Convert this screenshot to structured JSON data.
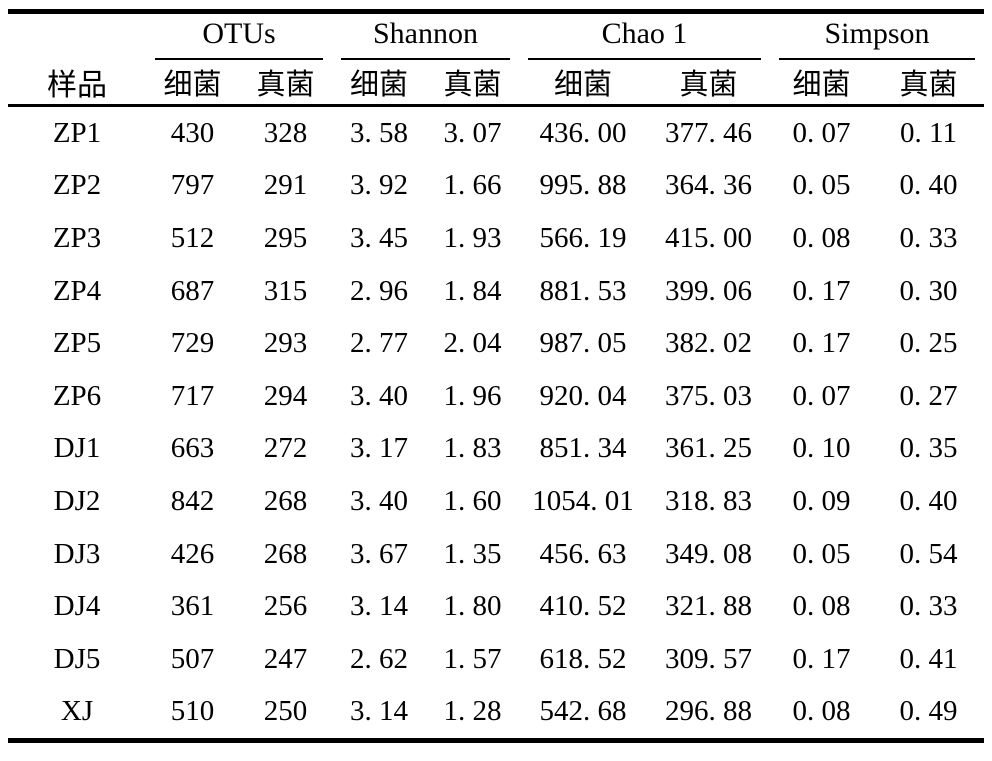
{
  "table": {
    "sample_header": "样品",
    "col_groups": [
      {
        "label": "OTUs"
      },
      {
        "label": "Shannon"
      },
      {
        "label": "Chao 1"
      },
      {
        "label": "Simpson"
      }
    ],
    "sub_headers": [
      "细菌",
      "真菌"
    ],
    "rows": [
      {
        "sample": "ZP1",
        "values": [
          "430",
          "328",
          "3. 58",
          "3. 07",
          "436. 00",
          "377. 46",
          "0. 07",
          "0. 11"
        ]
      },
      {
        "sample": "ZP2",
        "values": [
          "797",
          "291",
          "3. 92",
          "1. 66",
          "995. 88",
          "364. 36",
          "0. 05",
          "0. 40"
        ]
      },
      {
        "sample": "ZP3",
        "values": [
          "512",
          "295",
          "3. 45",
          "1. 93",
          "566. 19",
          "415. 00",
          "0. 08",
          "0. 33"
        ]
      },
      {
        "sample": "ZP4",
        "values": [
          "687",
          "315",
          "2. 96",
          "1. 84",
          "881. 53",
          "399. 06",
          "0. 17",
          "0. 30"
        ]
      },
      {
        "sample": "ZP5",
        "values": [
          "729",
          "293",
          "2. 77",
          "2. 04",
          "987. 05",
          "382. 02",
          "0. 17",
          "0. 25"
        ]
      },
      {
        "sample": "ZP6",
        "values": [
          "717",
          "294",
          "3. 40",
          "1. 96",
          "920. 04",
          "375. 03",
          "0. 07",
          "0. 27"
        ]
      },
      {
        "sample": "DJ1",
        "values": [
          "663",
          "272",
          "3. 17",
          "1. 83",
          "851. 34",
          "361. 25",
          "0. 10",
          "0. 35"
        ]
      },
      {
        "sample": "DJ2",
        "values": [
          "842",
          "268",
          "3. 40",
          "1. 60",
          "1054. 01",
          "318. 83",
          "0. 09",
          "0. 40"
        ]
      },
      {
        "sample": "DJ3",
        "values": [
          "426",
          "268",
          "3. 67",
          "1. 35",
          "456. 63",
          "349. 08",
          "0. 05",
          "0. 54"
        ]
      },
      {
        "sample": "DJ4",
        "values": [
          "361",
          "256",
          "3. 14",
          "1. 80",
          "410. 52",
          "321. 88",
          "0. 08",
          "0. 33"
        ]
      },
      {
        "sample": "DJ5",
        "values": [
          "507",
          "247",
          "2. 62",
          "1. 57",
          "618. 52",
          "309. 57",
          "0. 17",
          "0. 41"
        ]
      },
      {
        "sample": "XJ",
        "values": [
          "510",
          "250",
          "3. 14",
          "1. 28",
          "542. 68",
          "296. 88",
          "0. 08",
          "0. 49"
        ]
      }
    ],
    "colors": {
      "text": "#000000",
      "background": "#ffffff",
      "rule": "#000000"
    }
  }
}
